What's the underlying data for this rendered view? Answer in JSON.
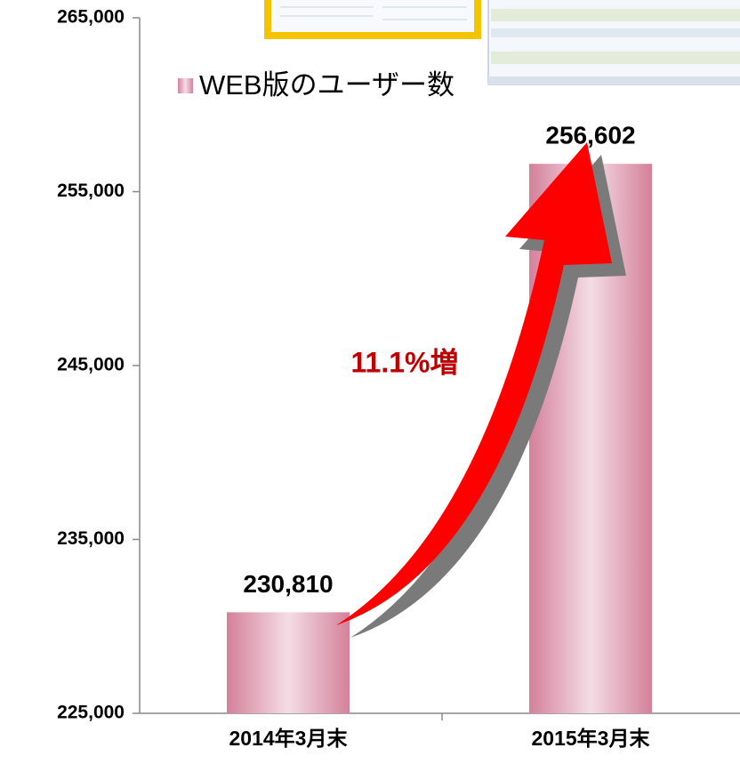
{
  "chart_data": {
    "type": "bar",
    "categories": [
      "2014年3月末",
      "2015年3月末"
    ],
    "series": [
      {
        "name": "WEB版のユーザー数",
        "color": "#d4809b",
        "values": [
          230810,
          256602
        ],
        "value_labels": [
          "230,810",
          "256,602"
        ]
      }
    ],
    "ylim": [
      225000,
      265000
    ],
    "yticks": [
      {
        "value": 225000,
        "label": "225,000"
      },
      {
        "value": 235000,
        "label": "235,000"
      },
      {
        "value": 245000,
        "label": "245,000"
      },
      {
        "value": 255000,
        "label": "255,000"
      },
      {
        "value": 265000,
        "label": "265,000"
      }
    ],
    "annotations": [
      "11.1%増"
    ]
  }
}
